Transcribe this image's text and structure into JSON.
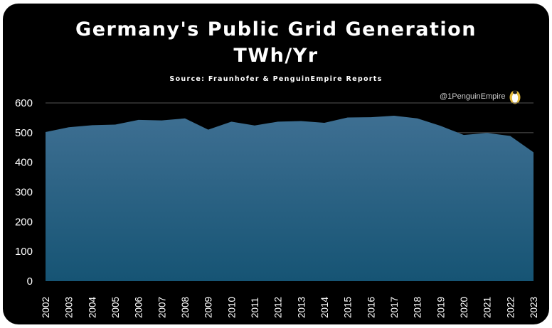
{
  "chart_data": {
    "type": "area",
    "title": "Germany's Public Grid Generation",
    "subtitle": "TWh/Yr",
    "source": "Source: Fraunhofer & PenguinEmpire Reports",
    "watermark": "@1PenguinEmpire",
    "xlabel": "",
    "ylabel": "",
    "x": [
      "2002",
      "2003",
      "2004",
      "2005",
      "2006",
      "2007",
      "2008",
      "2009",
      "2010",
      "2011",
      "2012",
      "2013",
      "2014",
      "2015",
      "2016",
      "2017",
      "2018",
      "2019",
      "2020",
      "2021",
      "2022",
      "2023"
    ],
    "values": [
      502,
      518,
      525,
      527,
      543,
      541,
      548,
      510,
      537,
      524,
      537,
      539,
      533,
      551,
      552,
      557,
      548,
      523,
      492,
      499,
      489,
      434
    ],
    "ylim": [
      0,
      600
    ],
    "yticks": [
      0,
      100,
      200,
      300,
      400,
      500,
      600
    ],
    "grid": "horizontal",
    "colors": {
      "background": "#000000",
      "area_top": "#3e6f92",
      "area_bottom": "#165474",
      "gridline": "#555555",
      "text": "#ffffff"
    }
  }
}
